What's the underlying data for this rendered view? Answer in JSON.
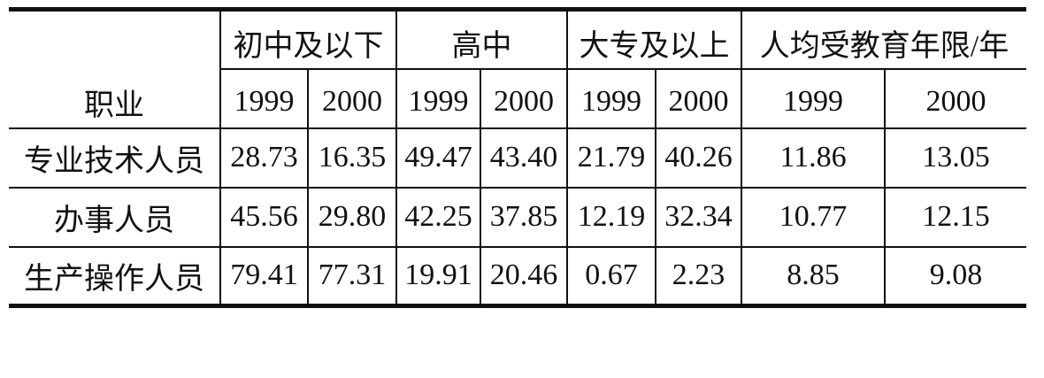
{
  "table": {
    "row_header_label": "职业",
    "groups": [
      "初中及以下",
      "高中",
      "大专及以上",
      "人均受教育年限/年"
    ],
    "years": [
      "1999",
      "2000",
      "1999",
      "2000",
      "1999",
      "2000",
      "1999",
      "2000"
    ],
    "rows": [
      {
        "label": "专业技术人员",
        "values": [
          "28.73",
          "16.35",
          "49.47",
          "43.40",
          "21.79",
          "40.26",
          "11.86",
          "13.05"
        ]
      },
      {
        "label": "办事人员",
        "values": [
          "45.56",
          "29.80",
          "42.25",
          "37.85",
          "12.19",
          "32.34",
          "10.77",
          "12.15"
        ]
      },
      {
        "label": "生产操作人员",
        "values": [
          "79.41",
          "77.31",
          "19.91",
          "20.46",
          "0.67",
          "2.23",
          "8.85",
          "9.08"
        ]
      }
    ]
  }
}
